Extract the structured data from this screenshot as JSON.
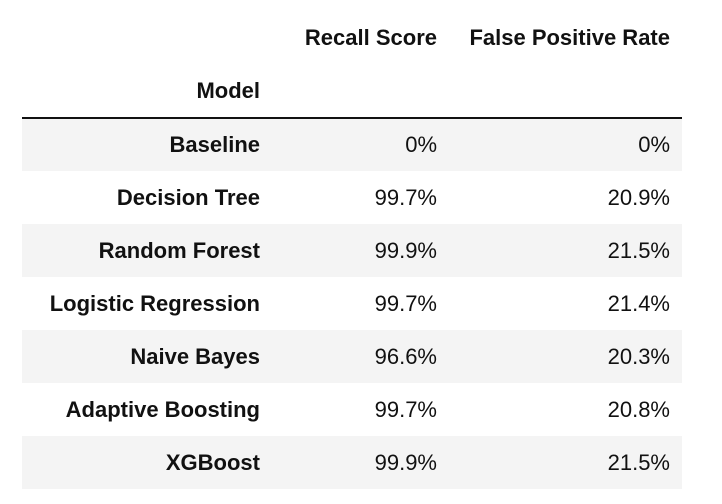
{
  "table": {
    "columns": [
      "Recall Score",
      "False Positive Rate"
    ],
    "index_name": "Model",
    "rows": [
      {
        "model": "Baseline",
        "recall": "0%",
        "fpr": "0%"
      },
      {
        "model": "Decision Tree",
        "recall": "99.7%",
        "fpr": "20.9%"
      },
      {
        "model": "Random Forest",
        "recall": "99.9%",
        "fpr": "21.5%"
      },
      {
        "model": "Logistic Regression",
        "recall": "99.7%",
        "fpr": "21.4%"
      },
      {
        "model": "Naive Bayes",
        "recall": "96.6%",
        "fpr": "20.3%"
      },
      {
        "model": "Adaptive Boosting",
        "recall": "99.7%",
        "fpr": "20.8%"
      },
      {
        "model": "XGBoost",
        "recall": "99.9%",
        "fpr": "21.5%"
      }
    ]
  },
  "chart_data": {
    "type": "table",
    "columns": [
      "Recall Score",
      "False Positive Rate"
    ],
    "index_name": "Model",
    "index": [
      "Baseline",
      "Decision Tree",
      "Random Forest",
      "Logistic Regression",
      "Naive Bayes",
      "Adaptive Boosting",
      "XGBoost"
    ],
    "values": [
      [
        "0%",
        "0%"
      ],
      [
        "99.7%",
        "20.9%"
      ],
      [
        "99.9%",
        "21.5%"
      ],
      [
        "99.7%",
        "21.4%"
      ],
      [
        "96.6%",
        "20.3%"
      ],
      [
        "99.7%",
        "20.8%"
      ],
      [
        "99.9%",
        "21.5%"
      ]
    ]
  }
}
